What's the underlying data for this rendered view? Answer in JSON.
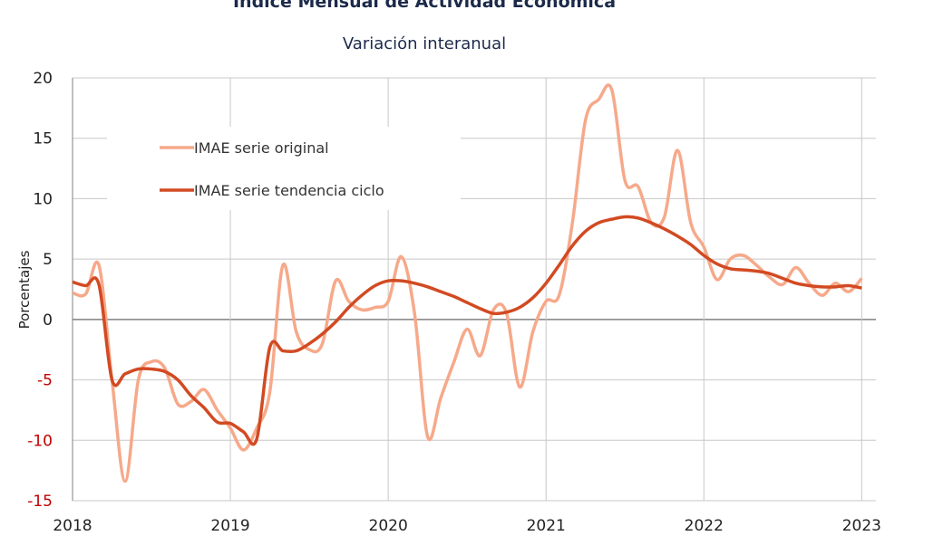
{
  "chart_data": {
    "type": "line",
    "title": "Índice Mensual de  Actividad Económica",
    "subtitle": "Variación interanual",
    "y_label": "Porcentajes",
    "x": [
      2018,
      2018.083,
      2018.167,
      2018.25,
      2018.333,
      2018.417,
      2018.5,
      2018.583,
      2018.667,
      2018.75,
      2018.833,
      2018.917,
      2019,
      2019.083,
      2019.167,
      2019.25,
      2019.333,
      2019.417,
      2019.5,
      2019.583,
      2019.667,
      2019.75,
      2019.833,
      2019.917,
      2020,
      2020.083,
      2020.167,
      2020.25,
      2020.333,
      2020.417,
      2020.5,
      2020.583,
      2020.667,
      2020.75,
      2020.833,
      2020.917,
      2021,
      2021.083,
      2021.167,
      2021.25,
      2021.333,
      2021.417,
      2021.5,
      2021.583,
      2021.667,
      2021.75,
      2021.833,
      2021.917,
      2022,
      2022.083,
      2022.167,
      2022.25,
      2022.333,
      2022.417,
      2022.5,
      2022.583,
      2022.667,
      2022.75,
      2022.833,
      2022.917,
      2023
    ],
    "series": [
      {
        "name": "IMAE serie original",
        "color": "#f6a98a",
        "width": 3.5,
        "values": [
          2.2,
          2.1,
          4.5,
          -5,
          -13.4,
          -5,
          -3.5,
          -4,
          -7,
          -6.8,
          -5.8,
          -7.5,
          -9,
          -10.8,
          -9,
          -6,
          4.5,
          -1,
          -2.5,
          -2,
          3.2,
          1.5,
          0.8,
          1,
          1.5,
          5.2,
          0.5,
          -9.7,
          -6.5,
          -3.5,
          -0.8,
          -3,
          0.8,
          0.5,
          -5.6,
          -1,
          1.5,
          2,
          8,
          16.5,
          18.2,
          19,
          11.5,
          11,
          8,
          8.5,
          14,
          8,
          6,
          3.3,
          5,
          5.3,
          4.5,
          3.5,
          2.9,
          4.3,
          3,
          2,
          3,
          2.3,
          3.4
        ]
      },
      {
        "name": "IMAE serie  tendencia ciclo",
        "color": "#d24a22",
        "width": 3.5,
        "values": [
          3.1,
          2.8,
          2.9,
          -5,
          -4.5,
          -4.1,
          -4.1,
          -4.3,
          -5,
          -6.3,
          -7.3,
          -8.5,
          -8.6,
          -9.3,
          -9.9,
          -2.3,
          -2.6,
          -2.6,
          -2,
          -1.2,
          -0.2,
          1,
          2,
          2.8,
          3.2,
          3.2,
          3,
          2.7,
          2.3,
          1.9,
          1.4,
          0.9,
          0.5,
          0.6,
          1,
          1.8,
          3,
          4.5,
          6.1,
          7.3,
          8,
          8.3,
          8.5,
          8.4,
          8,
          7.5,
          6.9,
          6.2,
          5.3,
          4.6,
          4.2,
          4.1,
          4,
          3.8,
          3.4,
          3,
          2.8,
          2.7,
          2.7,
          2.8,
          2.6
        ]
      }
    ],
    "xlim": [
      2018,
      2023.09
    ],
    "xticks": [
      2018,
      2019,
      2020,
      2021,
      2022,
      2023
    ],
    "ylim": [
      -15,
      20
    ],
    "yticks": [
      -15,
      -10,
      -5,
      0,
      5,
      10,
      15,
      20
    ],
    "grid": true,
    "legend": "upper left",
    "negative_tick_color": "#c00000"
  }
}
